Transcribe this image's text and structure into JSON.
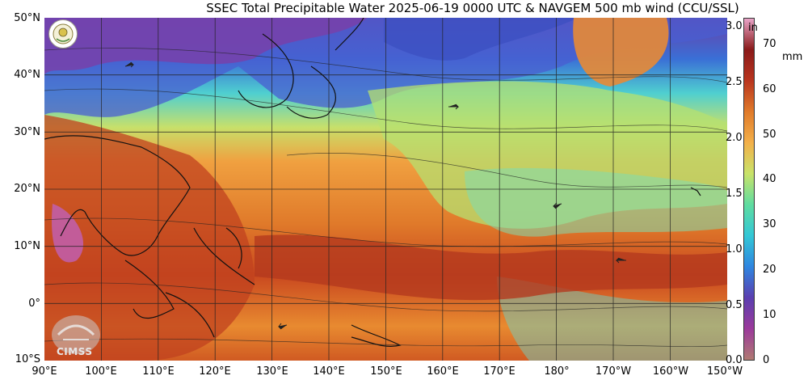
{
  "title": "SSEC Total Precipitable Water  2025-06-19 0000 UTC & NAVGEM 500 mb wind (CCU/SSL)",
  "lat_labels": [
    "50°N",
    "40°N",
    "30°N",
    "20°N",
    "10°N",
    "0°",
    "10°S"
  ],
  "lon_labels": [
    "90°E",
    "100°E",
    "110°E",
    "120°E",
    "130°E",
    "140°E",
    "150°E",
    "160°E",
    "170°E",
    "180°",
    "170°W",
    "160°W",
    "150°W"
  ],
  "colorbar": {
    "inch_unit": "in",
    "mm_unit": "mm",
    "inch_ticks": [
      "3.0",
      "2.5",
      "2.0",
      "1.5",
      "1.0",
      "0.5",
      "0.0"
    ],
    "mm_ticks": [
      "70",
      "60",
      "50",
      "40",
      "30",
      "20",
      "10",
      "0"
    ],
    "colors": [
      "#b07a72",
      "#9b3a9b",
      "#5b3fb0",
      "#2f86e0",
      "#33c7d6",
      "#5fdca0",
      "#c9e36a",
      "#f3b04a",
      "#e07a2a",
      "#b9351f",
      "#8a1a1a",
      "#e9a4c8"
    ]
  },
  "logos": {
    "ssec_logo_icon": "ssec-lab-seal",
    "cimss_logo_icon": "cimss-seal",
    "cimss_text": "CIMSS"
  }
}
